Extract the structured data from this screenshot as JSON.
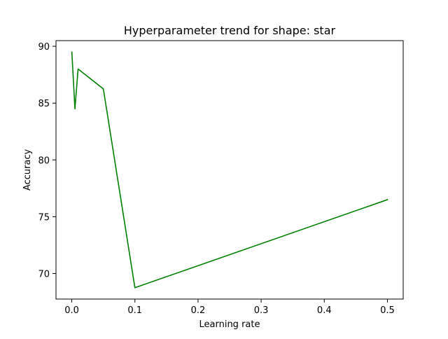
{
  "chart_data": {
    "type": "line",
    "title": "Hyperparameter trend for shape: star",
    "xlabel": "Learning rate",
    "ylabel": "Accuracy",
    "xlim": [
      -0.025,
      0.525
    ],
    "ylim": [
      67.75,
      90.5
    ],
    "xticks": [
      0.0,
      0.1,
      0.2,
      0.3,
      0.4,
      0.5
    ],
    "xtick_labels": [
      "0.0",
      "0.1",
      "0.2",
      "0.3",
      "0.4",
      "0.5"
    ],
    "yticks": [
      70,
      75,
      80,
      85,
      90
    ],
    "ytick_labels": [
      "70",
      "75",
      "80",
      "85",
      "90"
    ],
    "grid": false,
    "series": [
      {
        "color": "#008000",
        "x": [
          0.0001,
          0.005,
          0.01,
          0.05,
          0.1,
          0.5
        ],
        "y": [
          89.5,
          84.5,
          88.0,
          86.25,
          68.75,
          76.5
        ]
      }
    ]
  }
}
